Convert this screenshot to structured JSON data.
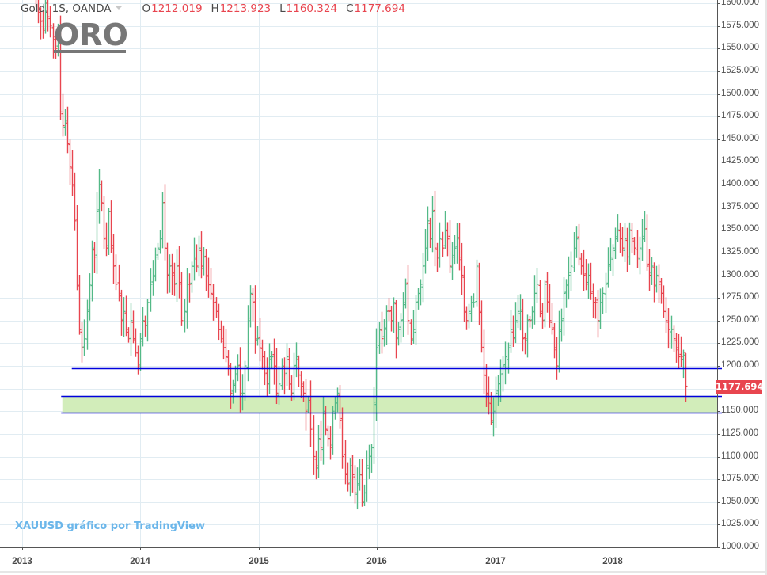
{
  "header": {
    "symbol": "Gold, 1S, OANDA",
    "open_label": "O",
    "open": "1212.019",
    "high_label": "H",
    "high": "1213.923",
    "low_label": "L",
    "low": "1160.324",
    "close_label": "C",
    "close": "1177.694"
  },
  "annotation": {
    "title": "ORO"
  },
  "watermark": "XAUUSD gráfico por TradingView",
  "last_price_label": "1177.694",
  "colors": {
    "up": "#53b987",
    "down": "#e8454f",
    "support_line": "#0000dd",
    "zone_fill": "#d2edba",
    "grid": "#e1ecf2",
    "last_price": "#e8454f",
    "watermark": "#6bb6ea"
  },
  "chart_data": {
    "type": "ohlc",
    "title": "Gold, 1S, OANDA — ORO",
    "xlabel": "",
    "ylabel": "",
    "ylim": [
      1000,
      1600
    ],
    "yticks": [
      "1600.000",
      "1575.000",
      "1550.000",
      "1525.000",
      "1500.000",
      "1475.000",
      "1450.000",
      "1425.000",
      "1400.000",
      "1375.000",
      "1350.000",
      "1325.000",
      "1300.000",
      "1275.000",
      "1250.000",
      "1225.000",
      "1200.000",
      "1175.000",
      "1150.000",
      "1125.000",
      "1100.000",
      "1075.000",
      "1050.000",
      "1025.000",
      "1000.000"
    ],
    "xticks": [
      "2013",
      "2014",
      "2015",
      "2016",
      "2017",
      "2018"
    ],
    "last_price": 1177.694,
    "horizontal_lines": [
      {
        "price": 1197,
        "color": "#0000dd",
        "from_year": 2013.42
      },
      {
        "price": 1167,
        "color": "#0000dd",
        "from_year": 2013.33
      },
      {
        "price": 1148.5,
        "color": "#0000dd",
        "from_year": 2013.33
      }
    ],
    "zone": {
      "from": 1148.5,
      "to": 1167,
      "color": "#d2edba"
    },
    "series_close": [
      1610,
      1590,
      1580,
      1570,
      1600,
      1585,
      1575,
      1560,
      1550,
      1570,
      1480,
      1465,
      1470,
      1445,
      1420,
      1400,
      1360,
      1290,
      1240,
      1220,
      1230,
      1260,
      1290,
      1330,
      1320,
      1370,
      1400,
      1380,
      1340,
      1330,
      1370,
      1330,
      1310,
      1290,
      1280,
      1250,
      1260,
      1240,
      1230,
      1250,
      1230,
      1215,
      1200,
      1230,
      1250,
      1245,
      1270,
      1290,
      1300,
      1320,
      1330,
      1340,
      1380,
      1330,
      1300,
      1310,
      1300,
      1290,
      1310,
      1290,
      1250,
      1260,
      1290,
      1290,
      1310,
      1320,
      1310,
      1330,
      1310,
      1320,
      1300,
      1290,
      1280,
      1270,
      1260,
      1240,
      1230,
      1220,
      1210,
      1200,
      1170,
      1180,
      1190,
      1200,
      1170,
      1170,
      1200,
      1250,
      1280,
      1270,
      1230,
      1230,
      1220,
      1210,
      1190,
      1180,
      1210,
      1210,
      1200,
      1170,
      1180,
      1200,
      1190,
      1210,
      1180,
      1170,
      1200,
      1210,
      1190,
      1180,
      1170,
      1150,
      1160,
      1130,
      1100,
      1090,
      1120,
      1110,
      1150,
      1130,
      1120,
      1110,
      1150,
      1160,
      1170,
      1140,
      1100,
      1080,
      1070,
      1090,
      1080,
      1060,
      1070,
      1080,
      1050,
      1060,
      1090,
      1100,
      1110,
      1160,
      1220,
      1240,
      1230,
      1240,
      1260,
      1260,
      1250,
      1270,
      1230,
      1240,
      1250,
      1270,
      1290,
      1250,
      1230,
      1240,
      1270,
      1280,
      1290,
      1310,
      1330,
      1360,
      1340,
      1370,
      1330,
      1320,
      1340,
      1330,
      1350,
      1340,
      1310,
      1320,
      1330,
      1340,
      1320,
      1300,
      1260,
      1250,
      1260,
      1270,
      1270,
      1310,
      1260,
      1220,
      1190,
      1170,
      1160,
      1140,
      1150,
      1170,
      1180,
      1190,
      1200,
      1210,
      1220,
      1240,
      1230,
      1250,
      1260,
      1260,
      1230,
      1230,
      1250,
      1250,
      1260,
      1280,
      1290,
      1260,
      1250,
      1290,
      1270,
      1250,
      1240,
      1220,
      1200,
      1240,
      1250,
      1280,
      1290,
      1300,
      1310,
      1330,
      1340,
      1320,
      1310,
      1300,
      1290,
      1300,
      1280,
      1270,
      1270,
      1250,
      1270,
      1280,
      1290,
      1310,
      1320,
      1330,
      1340,
      1350,
      1340,
      1330,
      1340,
      1320,
      1350,
      1340,
      1330,
      1320,
      1330,
      1340,
      1350,
      1310,
      1300,
      1310,
      1290,
      1300,
      1290,
      1280,
      1260,
      1250,
      1240,
      1240,
      1230,
      1220,
      1210,
      1210,
      1212,
      1177.694
    ]
  }
}
